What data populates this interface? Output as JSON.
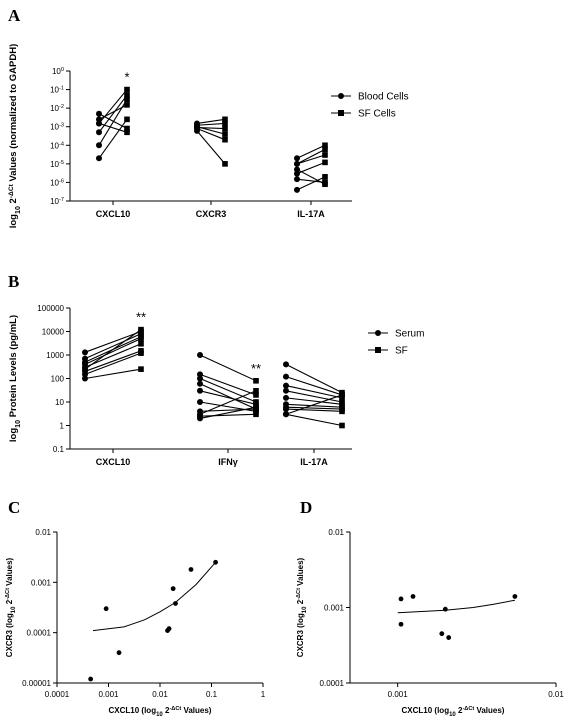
{
  "chart_data": [
    {
      "id": "A",
      "type": "line",
      "panel_label": "A",
      "ylabel_parts": [
        "log",
        "10",
        " 2",
        "-ΔCt",
        " Values (normalized to GAPDH)"
      ],
      "yscale": "log",
      "ylim": [
        1e-07,
        1
      ],
      "yticks": [
        {
          "v": 1e-07,
          "base": "10",
          "exp": "-7"
        },
        {
          "v": 1e-06,
          "base": "10",
          "exp": "-6"
        },
        {
          "v": 1e-05,
          "base": "10",
          "exp": "-5"
        },
        {
          "v": 0.0001,
          "base": "10",
          "exp": "-4"
        },
        {
          "v": 0.001,
          "base": "10",
          "exp": "-3"
        },
        {
          "v": 0.01,
          "base": "10",
          "exp": "-2"
        },
        {
          "v": 0.1,
          "base": "10",
          "exp": "-1"
        },
        {
          "v": 1,
          "base": "10",
          "exp": "0"
        }
      ],
      "categories": [
        "CXCL10",
        "CXCR3",
        "IL-17A"
      ],
      "legend": {
        "position": "right",
        "entries": [
          {
            "label": "Blood Cells",
            "marker": "circle"
          },
          {
            "label": "SF Cells",
            "marker": "square"
          }
        ]
      },
      "groups": [
        {
          "category": "CXCL10",
          "annotation": "*",
          "pairs": [
            [
              0.0001,
              0.03
            ],
            [
              0.0015,
              0.1
            ],
            [
              0.0025,
              0.015
            ],
            [
              0.005,
              0.0008
            ],
            [
              0.0015,
              0.0005
            ],
            [
              0.0005,
              0.05
            ],
            [
              2e-05,
              0.0025
            ]
          ]
        },
        {
          "category": "CXCR3",
          "annotation": "",
          "pairs": [
            [
              0.0015,
              0.0025
            ],
            [
              0.0012,
              0.0015
            ],
            [
              0.001,
              0.0004
            ],
            [
              0.0008,
              0.0002
            ],
            [
              0.0006,
              1e-05
            ],
            [
              0.0009,
              0.0008
            ]
          ]
        },
        {
          "category": "IL-17A",
          "annotation": "",
          "pairs": [
            [
              2e-05,
              0.0001
            ],
            [
              1e-05,
              3e-05
            ],
            [
              3e-06,
              1.2e-05
            ],
            [
              1.5e-06,
              1e-06
            ],
            [
              4e-07,
              2e-06
            ],
            [
              5e-06,
              8e-07
            ],
            [
              1e-05,
              6e-05
            ]
          ]
        }
      ]
    },
    {
      "id": "B",
      "type": "line",
      "panel_label": "B",
      "ylabel_parts": [
        "log",
        "10",
        " Protein Levels (pg/mL)"
      ],
      "yscale": "log",
      "ylim": [
        0.1,
        100000
      ],
      "yticks": [
        {
          "v": 0.1,
          "label": "0.1"
        },
        {
          "v": 1,
          "label": "1"
        },
        {
          "v": 10,
          "label": "10"
        },
        {
          "v": 100,
          "label": "100"
        },
        {
          "v": 1000,
          "label": "1000"
        },
        {
          "v": 10000,
          "label": "10000"
        },
        {
          "v": 100000,
          "label": "100000"
        }
      ],
      "categories": [
        "CXCL10",
        "IFNγ",
        "IL-17A"
      ],
      "legend": {
        "position": "right",
        "entries": [
          {
            "label": "Serum",
            "marker": "circle"
          },
          {
            "label": "SF",
            "marker": "square"
          }
        ]
      },
      "groups": [
        {
          "category": "CXCL10",
          "annotation": "**",
          "pairs": [
            [
              100,
              250
            ],
            [
              150,
              1200
            ],
            [
              200,
              1500
            ],
            [
              300,
              3000
            ],
            [
              400,
              5000
            ],
            [
              500,
              6000
            ],
            [
              700,
              8000
            ],
            [
              1300,
              10000
            ],
            [
              250,
              12000
            ]
          ]
        },
        {
          "category": "IFNγ",
          "annotation": "**",
          "pairs": [
            [
              1000,
              80
            ],
            [
              150,
              20
            ],
            [
              100,
              10
            ],
            [
              60,
              5
            ],
            [
              30,
              8
            ],
            [
              10,
              4
            ],
            [
              4,
              5
            ],
            [
              2.5,
              3
            ],
            [
              2,
              6
            ],
            [
              3,
              30
            ]
          ]
        },
        {
          "category": "IL-17A",
          "annotation": "",
          "pairs": [
            [
              400,
              25
            ],
            [
              120,
              20
            ],
            [
              50,
              15
            ],
            [
              30,
              10
            ],
            [
              15,
              8
            ],
            [
              8,
              6
            ],
            [
              5,
              4
            ],
            [
              3,
              1
            ],
            [
              3,
              20
            ],
            [
              6,
              5
            ]
          ]
        }
      ]
    },
    {
      "id": "C",
      "type": "scatter",
      "panel_label": "C",
      "xlabel_parts": [
        "CXCL10 (log",
        "10",
        " 2",
        "-ΔCt",
        " Values)"
      ],
      "ylabel_parts": [
        "CXCR3 (log",
        "10",
        " 2",
        "-ΔCt",
        " Values)"
      ],
      "xscale": "log",
      "yscale": "log",
      "xlim": [
        0.0001,
        1
      ],
      "ylim": [
        1e-05,
        0.01
      ],
      "xticks": [
        {
          "v": 0.0001,
          "label": "0.0001"
        },
        {
          "v": 0.001,
          "label": "0.001"
        },
        {
          "v": 0.01,
          "label": "0.01"
        },
        {
          "v": 0.1,
          "label": "0.1"
        },
        {
          "v": 1,
          "label": "1"
        }
      ],
      "yticks": [
        {
          "v": 1e-05,
          "label": "0.00001"
        },
        {
          "v": 0.0001,
          "label": "0.0001"
        },
        {
          "v": 0.001,
          "label": "0.001"
        },
        {
          "v": 0.01,
          "label": "0.01"
        }
      ],
      "points": [
        [
          0.00045,
          1.2e-05
        ],
        [
          0.0009,
          0.0003
        ],
        [
          0.0016,
          4e-05
        ],
        [
          0.014,
          0.00011
        ],
        [
          0.015,
          0.00012
        ],
        [
          0.018,
          0.00075
        ],
        [
          0.02,
          0.00038
        ],
        [
          0.04,
          0.0018
        ],
        [
          0.12,
          0.0025
        ]
      ],
      "fit": [
        [
          0.0005,
          0.00011
        ],
        [
          0.001,
          0.00012
        ],
        [
          0.002,
          0.00013
        ],
        [
          0.005,
          0.00018
        ],
        [
          0.01,
          0.00026
        ],
        [
          0.02,
          0.0004
        ],
        [
          0.05,
          0.0009
        ],
        [
          0.12,
          0.0025
        ]
      ]
    },
    {
      "id": "D",
      "type": "scatter",
      "panel_label": "D",
      "xlabel_parts": [
        "CXCL10 (log",
        "10",
        " 2",
        "-ΔCt",
        " Values)"
      ],
      "ylabel_parts": [
        "CXCR3 (log",
        "10",
        " 2",
        "-ΔCt",
        " Values)"
      ],
      "xscale": "log",
      "yscale": "log",
      "xlim": [
        0.0005,
        0.01
      ],
      "ylim": [
        0.0001,
        0.01
      ],
      "xticks": [
        {
          "v": 0.001,
          "label": "0.001"
        },
        {
          "v": 0.01,
          "label": "0.01"
        }
      ],
      "yticks": [
        {
          "v": 0.0001,
          "label": "0.0001"
        },
        {
          "v": 0.001,
          "label": "0.001"
        },
        {
          "v": 0.01,
          "label": "0.01"
        }
      ],
      "points": [
        [
          0.00105,
          0.0006
        ],
        [
          0.00105,
          0.0013
        ],
        [
          0.00125,
          0.0014
        ],
        [
          0.0019,
          0.00045
        ],
        [
          0.002,
          0.00095
        ],
        [
          0.0021,
          0.0004
        ],
        [
          0.0055,
          0.0014
        ]
      ],
      "fit": [
        [
          0.001,
          0.00085
        ],
        [
          0.002,
          0.00092
        ],
        [
          0.003,
          0.001
        ],
        [
          0.004,
          0.0011
        ],
        [
          0.0055,
          0.00125
        ]
      ]
    }
  ]
}
